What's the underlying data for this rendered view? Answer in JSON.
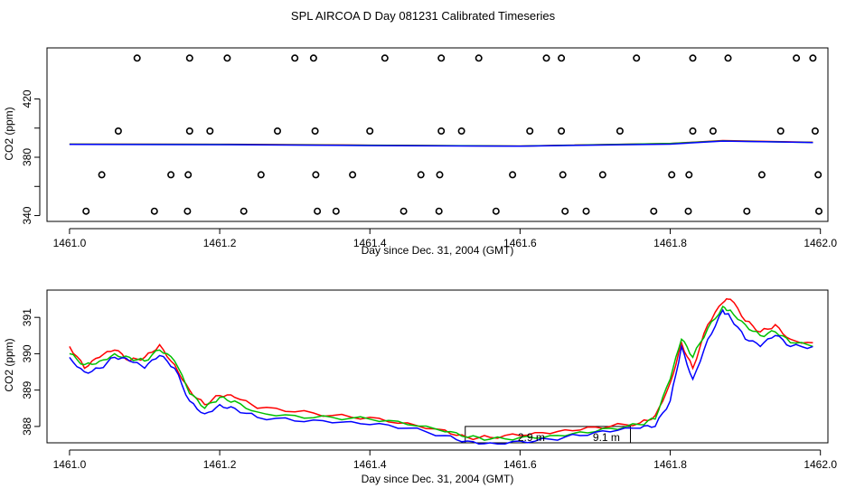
{
  "figure": {
    "title": "SPL AIRCOA D  Day 081231  Calibrated Timeseries"
  },
  "chart_data": [
    {
      "type": "scatter",
      "title": "",
      "xlabel": "Day since Dec. 31, 2004 (GMT)",
      "ylabel": "CO2 (ppm)",
      "xlim": [
        1460.97,
        1462.01
      ],
      "ylim": [
        336,
        455
      ],
      "xticks": [
        "1461.0",
        "1461.2",
        "1461.4",
        "1461.6",
        "1461.8",
        "1462.0"
      ],
      "xtick_values": [
        1461.0,
        1461.2,
        1461.4,
        1461.6,
        1461.8,
        1462.0
      ],
      "yticks": [
        "340",
        "380",
        "420"
      ],
      "ytick_values": [
        340,
        380,
        420
      ],
      "yminor_ticks": [
        360,
        400
      ],
      "calibration_points": {
        "marker": "open circle",
        "x": [
          1461.09,
          1461.16,
          1461.21,
          1461.3,
          1461.325,
          1461.42,
          1461.495,
          1461.545,
          1461.635,
          1461.655,
          1461.755,
          1461.83,
          1461.877,
          1461.968,
          1461.99,
          1461.065,
          1461.16,
          1461.187,
          1461.277,
          1461.327,
          1461.4,
          1461.495,
          1461.522,
          1461.613,
          1461.655,
          1461.733,
          1461.83,
          1461.857,
          1461.947,
          1461.993,
          1461.043,
          1461.135,
          1461.158,
          1461.255,
          1461.328,
          1461.377,
          1461.468,
          1461.493,
          1461.59,
          1461.657,
          1461.71,
          1461.802,
          1461.825,
          1461.922,
          1461.997,
          1461.022,
          1461.113,
          1461.157,
          1461.232,
          1461.33,
          1461.355,
          1461.445,
          1461.492,
          1461.568,
          1461.66,
          1461.688,
          1461.778,
          1461.824,
          1461.902,
          1461.998
        ],
        "y": [
          448,
          448,
          448,
          448,
          448,
          448,
          448,
          448,
          448,
          448,
          448,
          448,
          448,
          448,
          448,
          398,
          398,
          398,
          398,
          398,
          398,
          398,
          398,
          398,
          398,
          398,
          398,
          398,
          398,
          398,
          368,
          368,
          368,
          368,
          368,
          368,
          368,
          368,
          368,
          368,
          368,
          368,
          368,
          368,
          368,
          343,
          343,
          343,
          343,
          343,
          343,
          343,
          343,
          343,
          343,
          343,
          343,
          343,
          343,
          343
        ]
      },
      "series": [
        {
          "name": "red",
          "color": "#ff0000",
          "x": [
            1461.0,
            1461.2,
            1461.4,
            1461.6,
            1461.8,
            1461.87,
            1461.99
          ],
          "y": [
            389.0,
            388.9,
            388.3,
            387.7,
            389.5,
            391.5,
            390.3
          ]
        },
        {
          "name": "green",
          "color": "#00c000",
          "x": [
            1461.0,
            1461.2,
            1461.4,
            1461.6,
            1461.8,
            1461.87,
            1461.99
          ],
          "y": [
            389.0,
            388.8,
            388.2,
            387.7,
            389.4,
            391.2,
            390.2
          ]
        },
        {
          "name": "blue",
          "color": "#0000ff",
          "x": [
            1461.0,
            1461.2,
            1461.4,
            1461.6,
            1461.8,
            1461.87,
            1461.99
          ],
          "y": [
            388.8,
            388.6,
            388.0,
            387.6,
            389.0,
            391.1,
            390.1
          ]
        }
      ]
    },
    {
      "type": "line",
      "title": "",
      "xlabel": "Day since Dec. 31, 2004 (GMT)",
      "ylabel": "CO2 (ppm)",
      "xlim": [
        1460.97,
        1462.01
      ],
      "ylim": [
        387.55,
        391.75
      ],
      "xticks": [
        "1461.0",
        "1461.2",
        "1461.4",
        "1461.6",
        "1461.8",
        "1462.0"
      ],
      "xtick_values": [
        1461.0,
        1461.2,
        1461.4,
        1461.6,
        1461.8,
        1462.0
      ],
      "yticks": [
        "388",
        "389",
        "390",
        "391"
      ],
      "ytick_values": [
        388,
        389,
        390,
        391
      ],
      "x": [
        1461.0,
        1461.02,
        1461.04,
        1461.06,
        1461.08,
        1461.1,
        1461.12,
        1461.14,
        1461.16,
        1461.18,
        1461.2,
        1461.22,
        1461.25,
        1461.3,
        1461.35,
        1461.4,
        1461.45,
        1461.5,
        1461.53,
        1461.56,
        1461.6,
        1461.64,
        1461.68,
        1461.72,
        1461.76,
        1461.78,
        1461.8,
        1461.815,
        1461.83,
        1461.85,
        1461.87,
        1461.88,
        1461.9,
        1461.92,
        1461.94,
        1461.96,
        1461.99
      ],
      "series": [
        {
          "name": "red",
          "color": "#ff0000",
          "values": [
            390.2,
            389.6,
            389.9,
            390.1,
            389.8,
            389.9,
            390.25,
            389.7,
            389.0,
            388.6,
            388.85,
            388.8,
            388.5,
            388.4,
            388.3,
            388.25,
            388.1,
            387.9,
            387.7,
            387.7,
            387.75,
            387.8,
            387.9,
            388.0,
            388.1,
            388.3,
            389.2,
            390.3,
            389.6,
            390.8,
            391.4,
            391.5,
            390.9,
            390.6,
            390.8,
            390.4,
            390.3
          ]
        },
        {
          "name": "green",
          "color": "#00c000",
          "values": [
            390.0,
            389.7,
            389.8,
            390.0,
            389.9,
            389.8,
            390.1,
            389.8,
            388.9,
            388.5,
            388.8,
            388.7,
            388.4,
            388.3,
            388.25,
            388.2,
            388.05,
            387.85,
            387.7,
            387.65,
            387.7,
            387.75,
            387.85,
            387.95,
            388.05,
            388.2,
            389.3,
            390.4,
            389.9,
            390.7,
            391.3,
            391.2,
            390.8,
            390.5,
            390.6,
            390.3,
            390.2
          ]
        },
        {
          "name": "blue",
          "color": "#0000ff",
          "values": [
            389.9,
            389.5,
            389.6,
            389.9,
            389.8,
            389.6,
            389.95,
            389.6,
            388.7,
            388.35,
            388.6,
            388.5,
            388.25,
            388.15,
            388.1,
            388.05,
            387.95,
            387.75,
            387.6,
            387.55,
            387.6,
            387.65,
            387.75,
            387.85,
            387.95,
            388.0,
            388.7,
            390.2,
            389.3,
            390.4,
            391.2,
            391.0,
            390.4,
            390.2,
            390.5,
            390.2,
            390.2
          ]
        }
      ],
      "annotation_box": {
        "x0": 1461.527,
        "x1": 1461.747,
        "y0": 387.55,
        "y1": 388.0
      },
      "annotations": [
        {
          "text": "2.9 m",
          "x": 1461.615,
          "y": 387.6
        },
        {
          "text": "9.1 m",
          "x": 1461.715,
          "y": 387.6
        }
      ]
    }
  ]
}
